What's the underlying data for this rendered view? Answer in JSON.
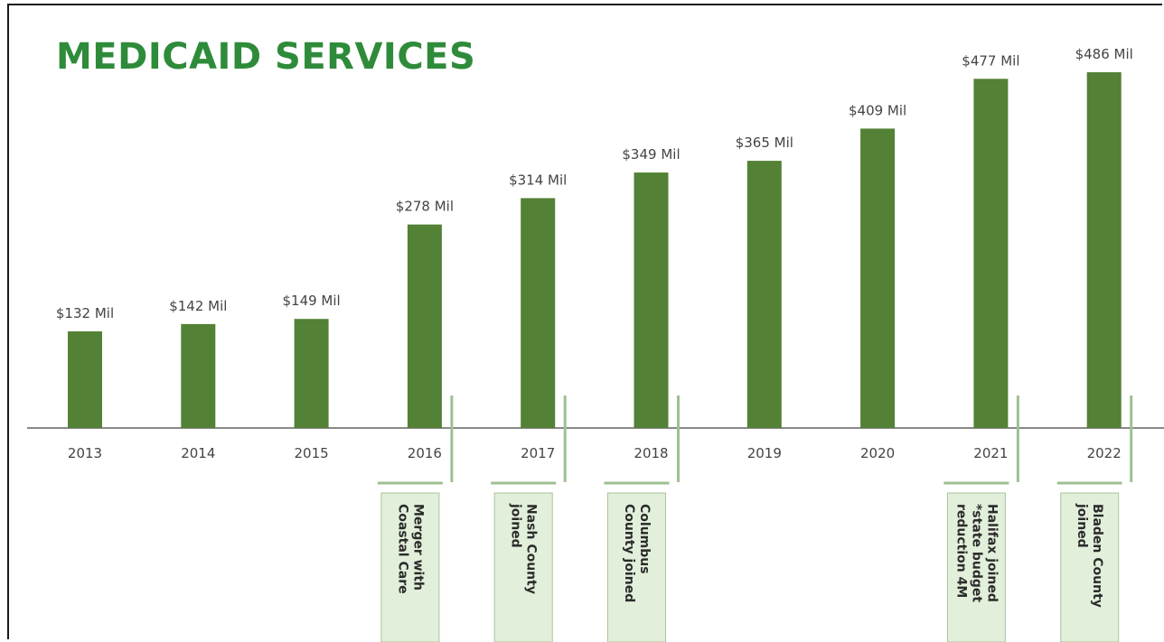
{
  "chart_data": {
    "type": "bar",
    "title": "MEDICAID SERVICES",
    "categories": [
      "2013",
      "2014",
      "2015",
      "2016",
      "2017",
      "2018",
      "2019",
      "2020",
      "2021",
      "2022"
    ],
    "values": [
      132,
      142,
      149,
      278,
      314,
      349,
      365,
      409,
      477,
      486
    ],
    "value_labels": [
      "$132 Mil",
      "$142 Mil",
      "$149 Mil",
      "$278 Mil",
      "$314 Mil",
      "$349 Mil",
      "$365 Mil",
      "$409 Mil",
      "$477 Mil",
      "$486 Mil"
    ],
    "unit": "$ Mil",
    "ylim": [
      0,
      486
    ],
    "grid": false,
    "legend": "none",
    "annotations": [
      {
        "category": "2016",
        "lines": [
          "Merger with",
          "Coastal Care"
        ]
      },
      {
        "category": "2017",
        "lines": [
          "Nash County",
          "joined"
        ]
      },
      {
        "category": "2018",
        "lines": [
          "Columbus",
          "County joined"
        ]
      },
      {
        "category": "2021",
        "lines": [
          "Halifax joined",
          "*state budget",
          "reduction 4M"
        ]
      },
      {
        "category": "2022",
        "lines": [
          "Bladen County",
          "joined"
        ]
      }
    ]
  },
  "colors": {
    "bar": "#538135",
    "title": "#2e8b3a",
    "axis": "#888888",
    "annotation_box": "#e2efda",
    "annotation_border": "#a9c59a"
  }
}
